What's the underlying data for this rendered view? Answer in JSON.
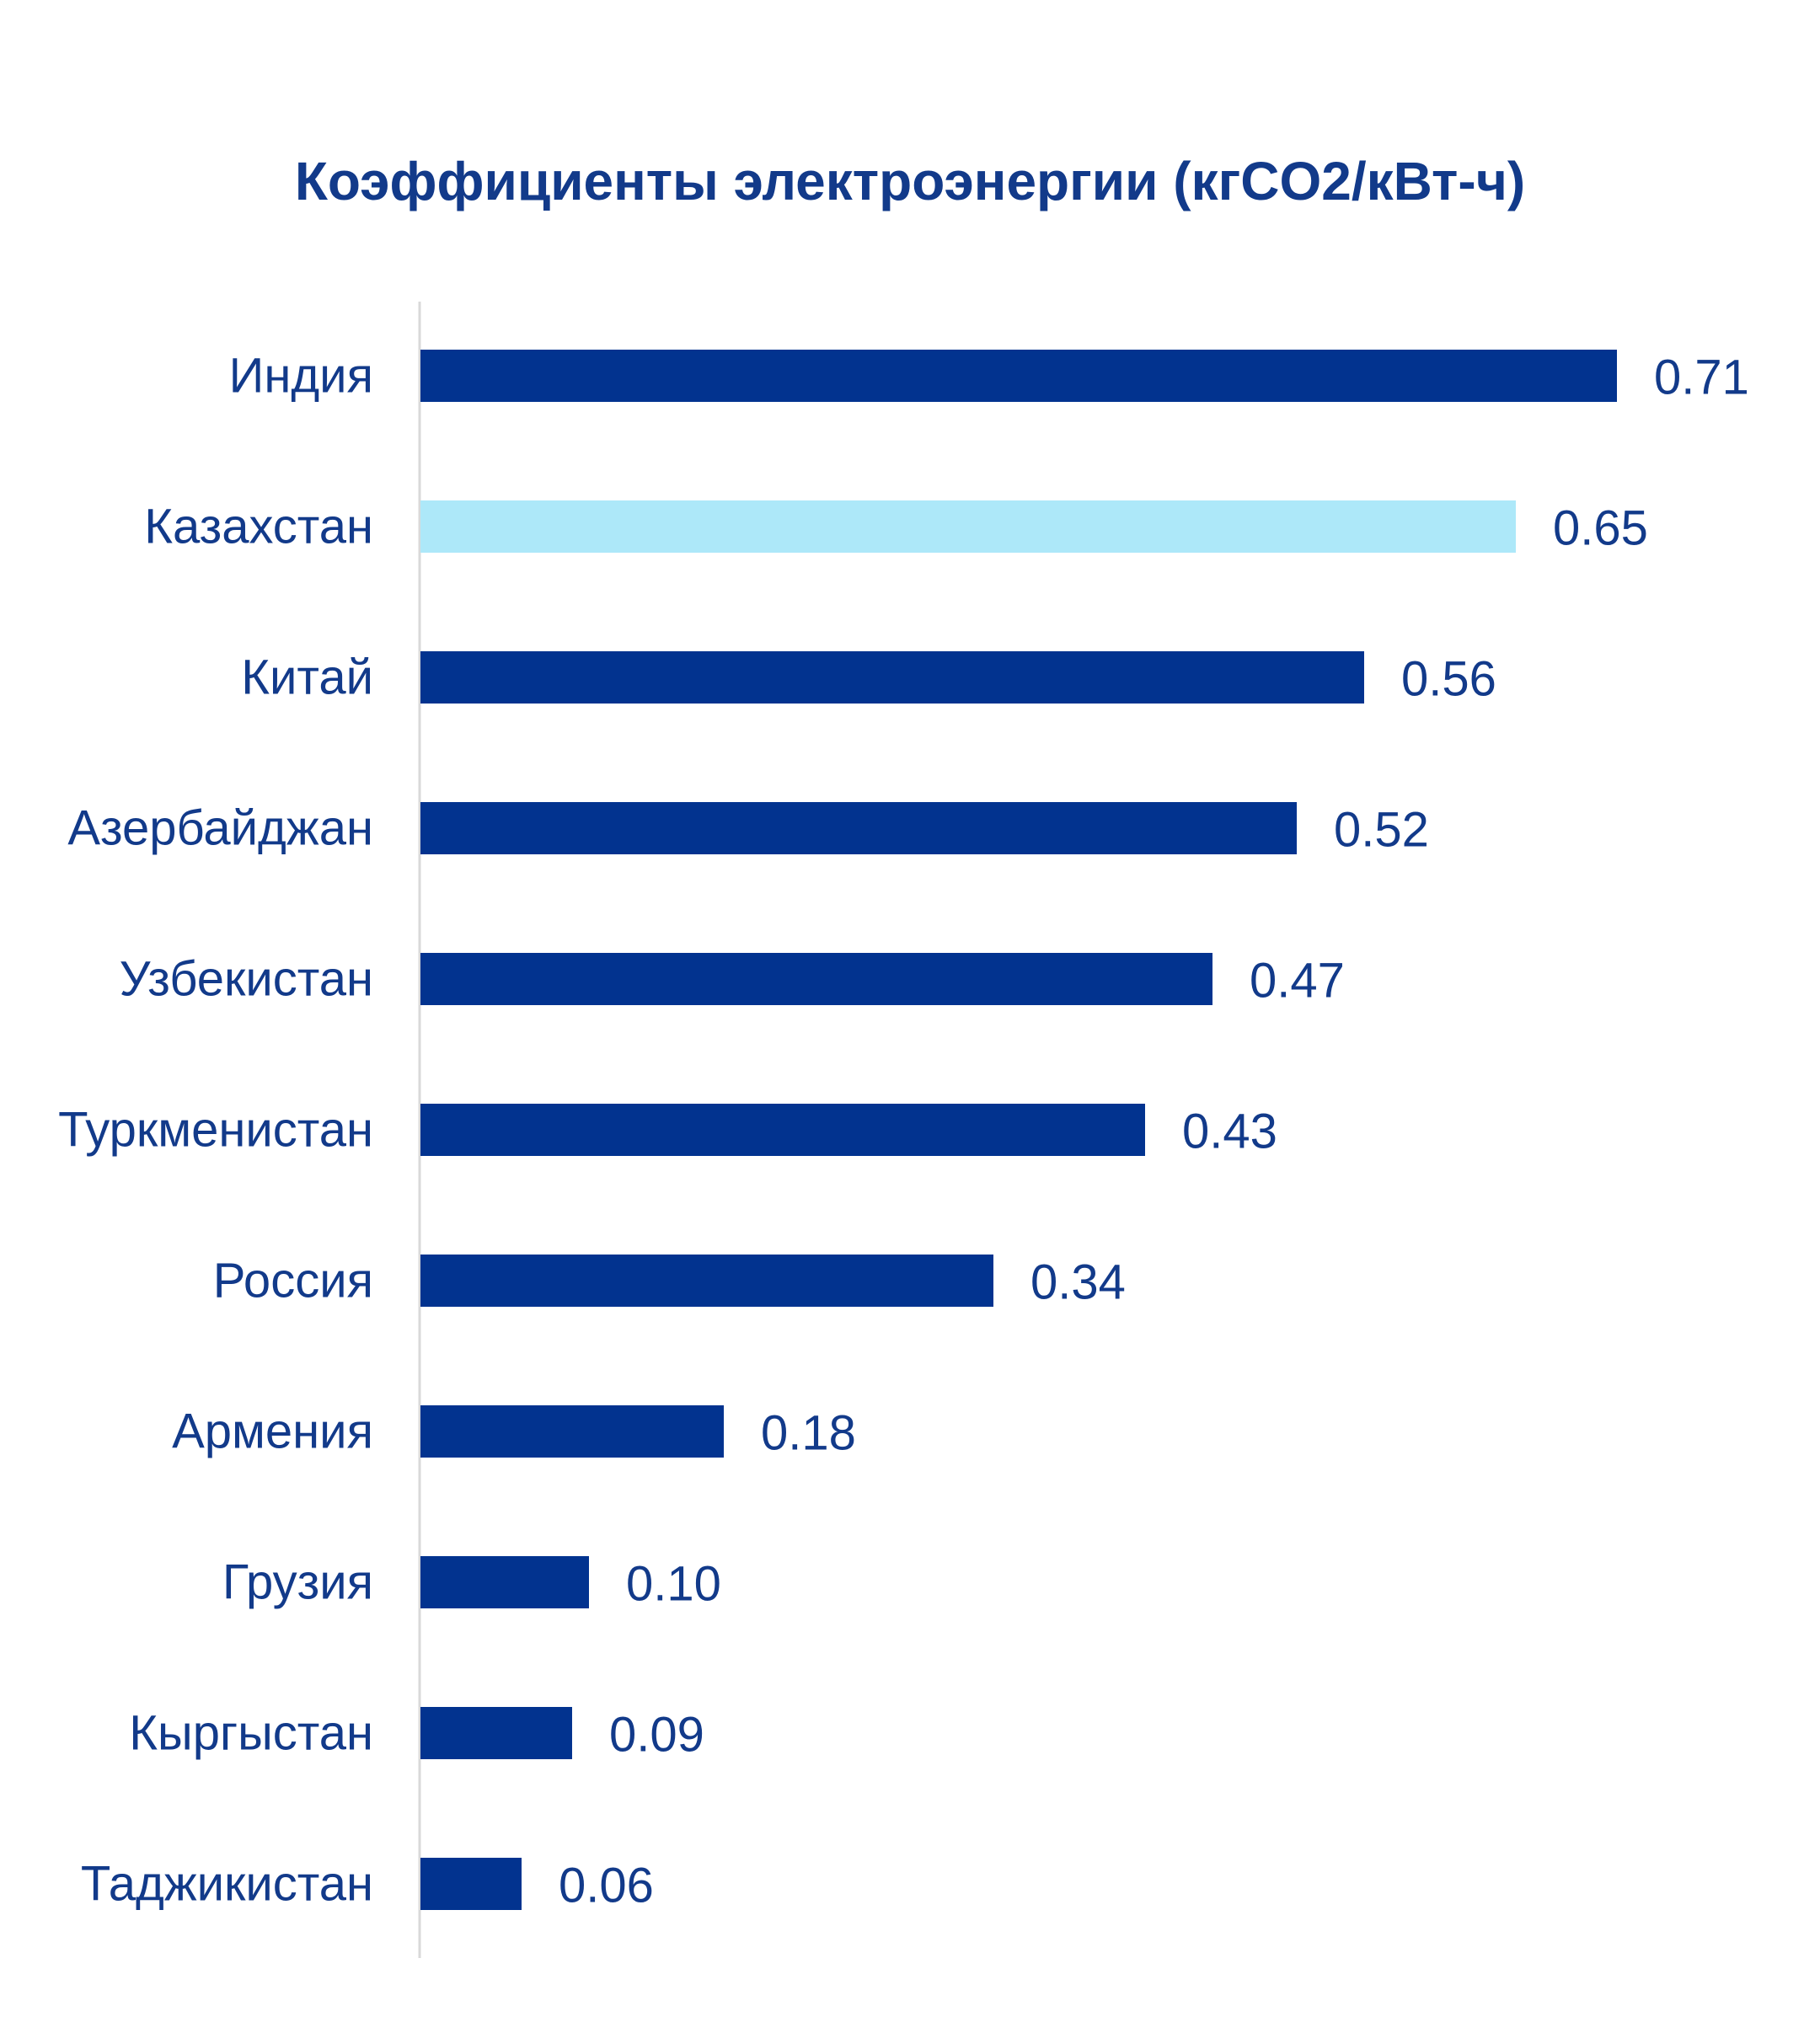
{
  "colors": {
    "bar": "#02338F",
    "highlight": "#ADE8F9",
    "text": "#123A8A",
    "axis": "#D9D9D9"
  },
  "chart_data": {
    "type": "bar",
    "orientation": "horizontal",
    "title": "Коэффициенты электроэнергии (кгCO2/кВт-ч)",
    "xlabel": "",
    "ylabel": "",
    "grid": false,
    "legend": "none",
    "xlim": [
      0,
      0.71
    ],
    "highlight_category": "Казахстан",
    "categories": [
      "Индия",
      "Казахстан",
      "Китай",
      "Азербайджан",
      "Узбекистан",
      "Туркменистан",
      "Россия",
      "Армения",
      "Грузия",
      "Кыргыстан",
      "Таджикистан"
    ],
    "values": [
      0.71,
      0.65,
      0.56,
      0.52,
      0.47,
      0.43,
      0.34,
      0.18,
      0.1,
      0.09,
      0.06
    ],
    "value_labels": [
      "0.71",
      "0.65",
      "0.56",
      "0.52",
      "0.47",
      "0.43",
      "0.34",
      "0.18",
      "0.10",
      "0.09",
      "0.06"
    ]
  }
}
